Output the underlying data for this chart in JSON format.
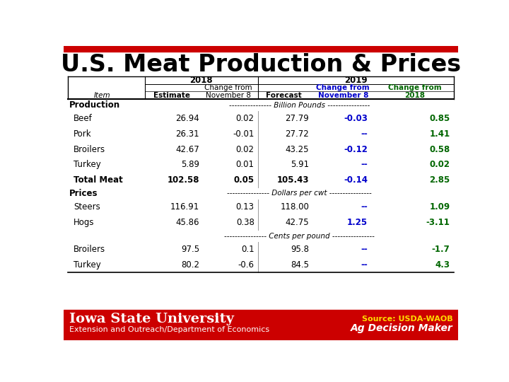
{
  "title": "U.S. Meat Production & Prices",
  "title_color": "#000000",
  "top_bar_color": "#cc0000",
  "bottom_bar_color": "#cc0000",
  "col_blue": "#0000cc",
  "col_green": "#006600",
  "rows": [
    {
      "label": "Production",
      "type": "section",
      "unit": "Billion Pounds"
    },
    {
      "label": "Beef",
      "type": "data",
      "vals": [
        "26.94",
        "0.02",
        "27.79",
        "-0.03",
        "0.85"
      ]
    },
    {
      "label": "Pork",
      "type": "data",
      "vals": [
        "26.31",
        "-0.01",
        "27.72",
        "--",
        "1.41"
      ]
    },
    {
      "label": "Broilers",
      "type": "data",
      "vals": [
        "42.67",
        "0.02",
        "43.25",
        "-0.12",
        "0.58"
      ]
    },
    {
      "label": "Turkey",
      "type": "data",
      "vals": [
        "5.89",
        "0.01",
        "5.91",
        "--",
        "0.02"
      ]
    },
    {
      "label": "Total Meat",
      "type": "data_bold",
      "vals": [
        "102.58",
        "0.05",
        "105.43",
        "-0.14",
        "2.85"
      ]
    },
    {
      "label": "Prices",
      "type": "section",
      "unit": "Dollars per cwt"
    },
    {
      "label": "Steers",
      "type": "data",
      "vals": [
        "116.91",
        "0.13",
        "118.00",
        "--",
        "1.09"
      ]
    },
    {
      "label": "Hogs",
      "type": "data",
      "vals": [
        "45.86",
        "0.38",
        "42.75",
        "1.25",
        "-3.11"
      ]
    },
    {
      "label": "",
      "type": "unit_only",
      "unit": "Cents per pound"
    },
    {
      "label": "Broilers",
      "type": "data",
      "vals": [
        "97.5",
        "0.1",
        "95.8",
        "--",
        "-1.7"
      ]
    },
    {
      "label": "Turkey",
      "type": "data",
      "vals": [
        "80.2",
        "-0.6",
        "84.5",
        "--",
        "4.3"
      ]
    }
  ],
  "footer_left1": "Iowa State University",
  "footer_left2": "Extension and Outreach/Department of Economics",
  "footer_right1": "Source: USDA-WAOB",
  "footer_right2": "Ag Decision Maker",
  "footer_bg": "#cc0000",
  "footer_right_color": "#ffdd00"
}
